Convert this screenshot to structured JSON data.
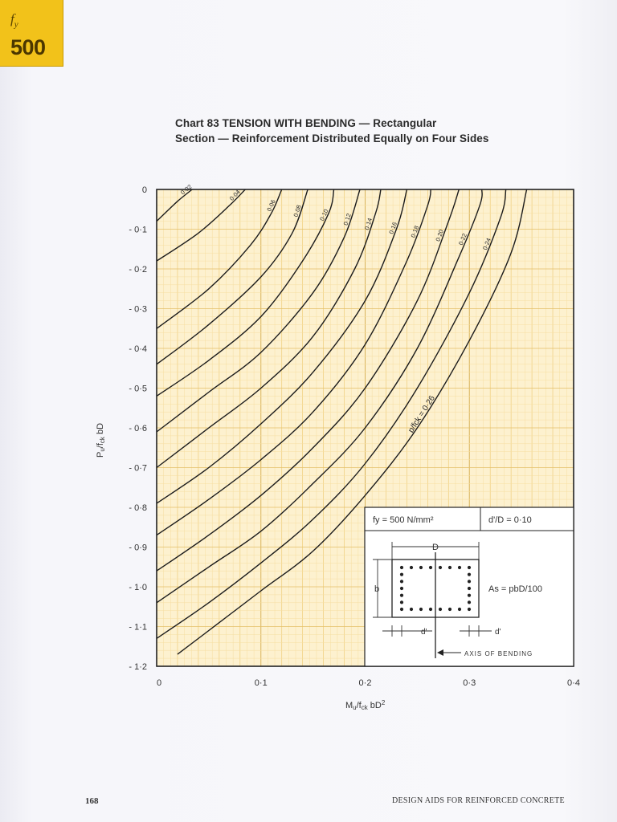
{
  "tab": {
    "symbol": "f",
    "subscript": "y",
    "value": "500"
  },
  "title": {
    "line1": "Chart 83 TENSION    WITH    BENDING — Rectangular",
    "line2": "Section — Reinforcement Distributed Equally on Four Sides"
  },
  "chart_data": {
    "type": "line",
    "xlabel": "Mu/fck bD²",
    "ylabel": "Pu/fck bD",
    "xlim": [
      0,
      0.4
    ],
    "ylim": [
      -1.2,
      0
    ],
    "x_ticks": [
      "0",
      "0·1",
      "0·2",
      "0·3",
      "0·4"
    ],
    "y_ticks": [
      "0",
      "- 0·1",
      "- 0·2",
      "- 0·3",
      "- 0·4",
      "- 0·5",
      "- 0·6",
      "- 0·7",
      "- 0·8",
      "- 0·9",
      "- 1·0",
      "- 1·1",
      "- 1·2"
    ],
    "grid": true,
    "series": [
      {
        "name": "0·02",
        "points": [
          [
            0,
            -0.08
          ],
          [
            0.02,
            -0.03
          ],
          [
            0.034,
            0
          ]
        ]
      },
      {
        "name": "0·04",
        "points": [
          [
            0,
            -0.18
          ],
          [
            0.04,
            -0.11
          ],
          [
            0.07,
            -0.04
          ],
          [
            0.085,
            0
          ]
        ]
      },
      {
        "name": "0·06",
        "points": [
          [
            0,
            -0.35
          ],
          [
            0.05,
            -0.25
          ],
          [
            0.09,
            -0.14
          ],
          [
            0.11,
            -0.06
          ],
          [
            0.12,
            0
          ]
        ]
      },
      {
        "name": "0·08",
        "points": [
          [
            0,
            -0.44
          ],
          [
            0.05,
            -0.34
          ],
          [
            0.1,
            -0.22
          ],
          [
            0.13,
            -0.11
          ],
          [
            0.145,
            0
          ]
        ]
      },
      {
        "name": "0·10",
        "points": [
          [
            0,
            -0.52
          ],
          [
            0.05,
            -0.43
          ],
          [
            0.1,
            -0.32
          ],
          [
            0.14,
            -0.18
          ],
          [
            0.165,
            -0.06
          ],
          [
            0.17,
            0
          ]
        ]
      },
      {
        "name": "0·12",
        "points": [
          [
            0,
            -0.61
          ],
          [
            0.05,
            -0.51
          ],
          [
            0.1,
            -0.41
          ],
          [
            0.15,
            -0.26
          ],
          [
            0.18,
            -0.12
          ],
          [
            0.195,
            0
          ]
        ]
      },
      {
        "name": "0·14",
        "points": [
          [
            0,
            -0.7
          ],
          [
            0.05,
            -0.6
          ],
          [
            0.1,
            -0.5
          ],
          [
            0.15,
            -0.37
          ],
          [
            0.19,
            -0.2
          ],
          [
            0.21,
            -0.06
          ],
          [
            0.215,
            0
          ]
        ]
      },
      {
        "name": "0·16",
        "points": [
          [
            0,
            -0.79
          ],
          [
            0.05,
            -0.7
          ],
          [
            0.1,
            -0.59
          ],
          [
            0.15,
            -0.46
          ],
          [
            0.2,
            -0.28
          ],
          [
            0.23,
            -0.1
          ],
          [
            0.24,
            0
          ]
        ]
      },
      {
        "name": "0·18",
        "points": [
          [
            0,
            -0.87
          ],
          [
            0.05,
            -0.78
          ],
          [
            0.1,
            -0.68
          ],
          [
            0.15,
            -0.56
          ],
          [
            0.2,
            -0.39
          ],
          [
            0.24,
            -0.18
          ],
          [
            0.26,
            -0.04
          ],
          [
            0.263,
            0
          ]
        ]
      },
      {
        "name": "0·20",
        "points": [
          [
            0,
            -0.96
          ],
          [
            0.05,
            -0.87
          ],
          [
            0.1,
            -0.77
          ],
          [
            0.15,
            -0.65
          ],
          [
            0.2,
            -0.5
          ],
          [
            0.25,
            -0.28
          ],
          [
            0.28,
            -0.08
          ],
          [
            0.29,
            0
          ]
        ]
      },
      {
        "name": "0·22",
        "points": [
          [
            0,
            -1.04
          ],
          [
            0.05,
            -0.95
          ],
          [
            0.1,
            -0.86
          ],
          [
            0.15,
            -0.74
          ],
          [
            0.2,
            -0.6
          ],
          [
            0.25,
            -0.4
          ],
          [
            0.29,
            -0.17
          ],
          [
            0.31,
            -0.04
          ],
          [
            0.312,
            0
          ]
        ]
      },
      {
        "name": "0·24",
        "points": [
          [
            0,
            -1.13
          ],
          [
            0.05,
            -1.04
          ],
          [
            0.1,
            -0.94
          ],
          [
            0.15,
            -0.83
          ],
          [
            0.2,
            -0.69
          ],
          [
            0.25,
            -0.5
          ],
          [
            0.3,
            -0.26
          ],
          [
            0.33,
            -0.07
          ],
          [
            0.335,
            0
          ]
        ]
      },
      {
        "name": "p/fck = 0·26",
        "points": [
          [
            0.02,
            -1.17
          ],
          [
            0.06,
            -1.09
          ],
          [
            0.1,
            -1.01
          ],
          [
            0.15,
            -0.91
          ],
          [
            0.2,
            -0.77
          ],
          [
            0.25,
            -0.6
          ],
          [
            0.3,
            -0.38
          ],
          [
            0.34,
            -0.16
          ],
          [
            0.355,
            0
          ]
        ]
      }
    ],
    "inset": {
      "fy_label": "fy = 500 N/mm²",
      "dD_label": "d'/D = 0·10",
      "D_label": "D",
      "b_label": "b",
      "d_left_label": "d'",
      "d_right_label": "d'",
      "As_label": "As = pbD/100",
      "axis_label": "AXIS OF BENDING"
    }
  },
  "footer": {
    "page": "168",
    "title": "DESIGN AIDS FOR REINFORCED CONCRETE"
  }
}
